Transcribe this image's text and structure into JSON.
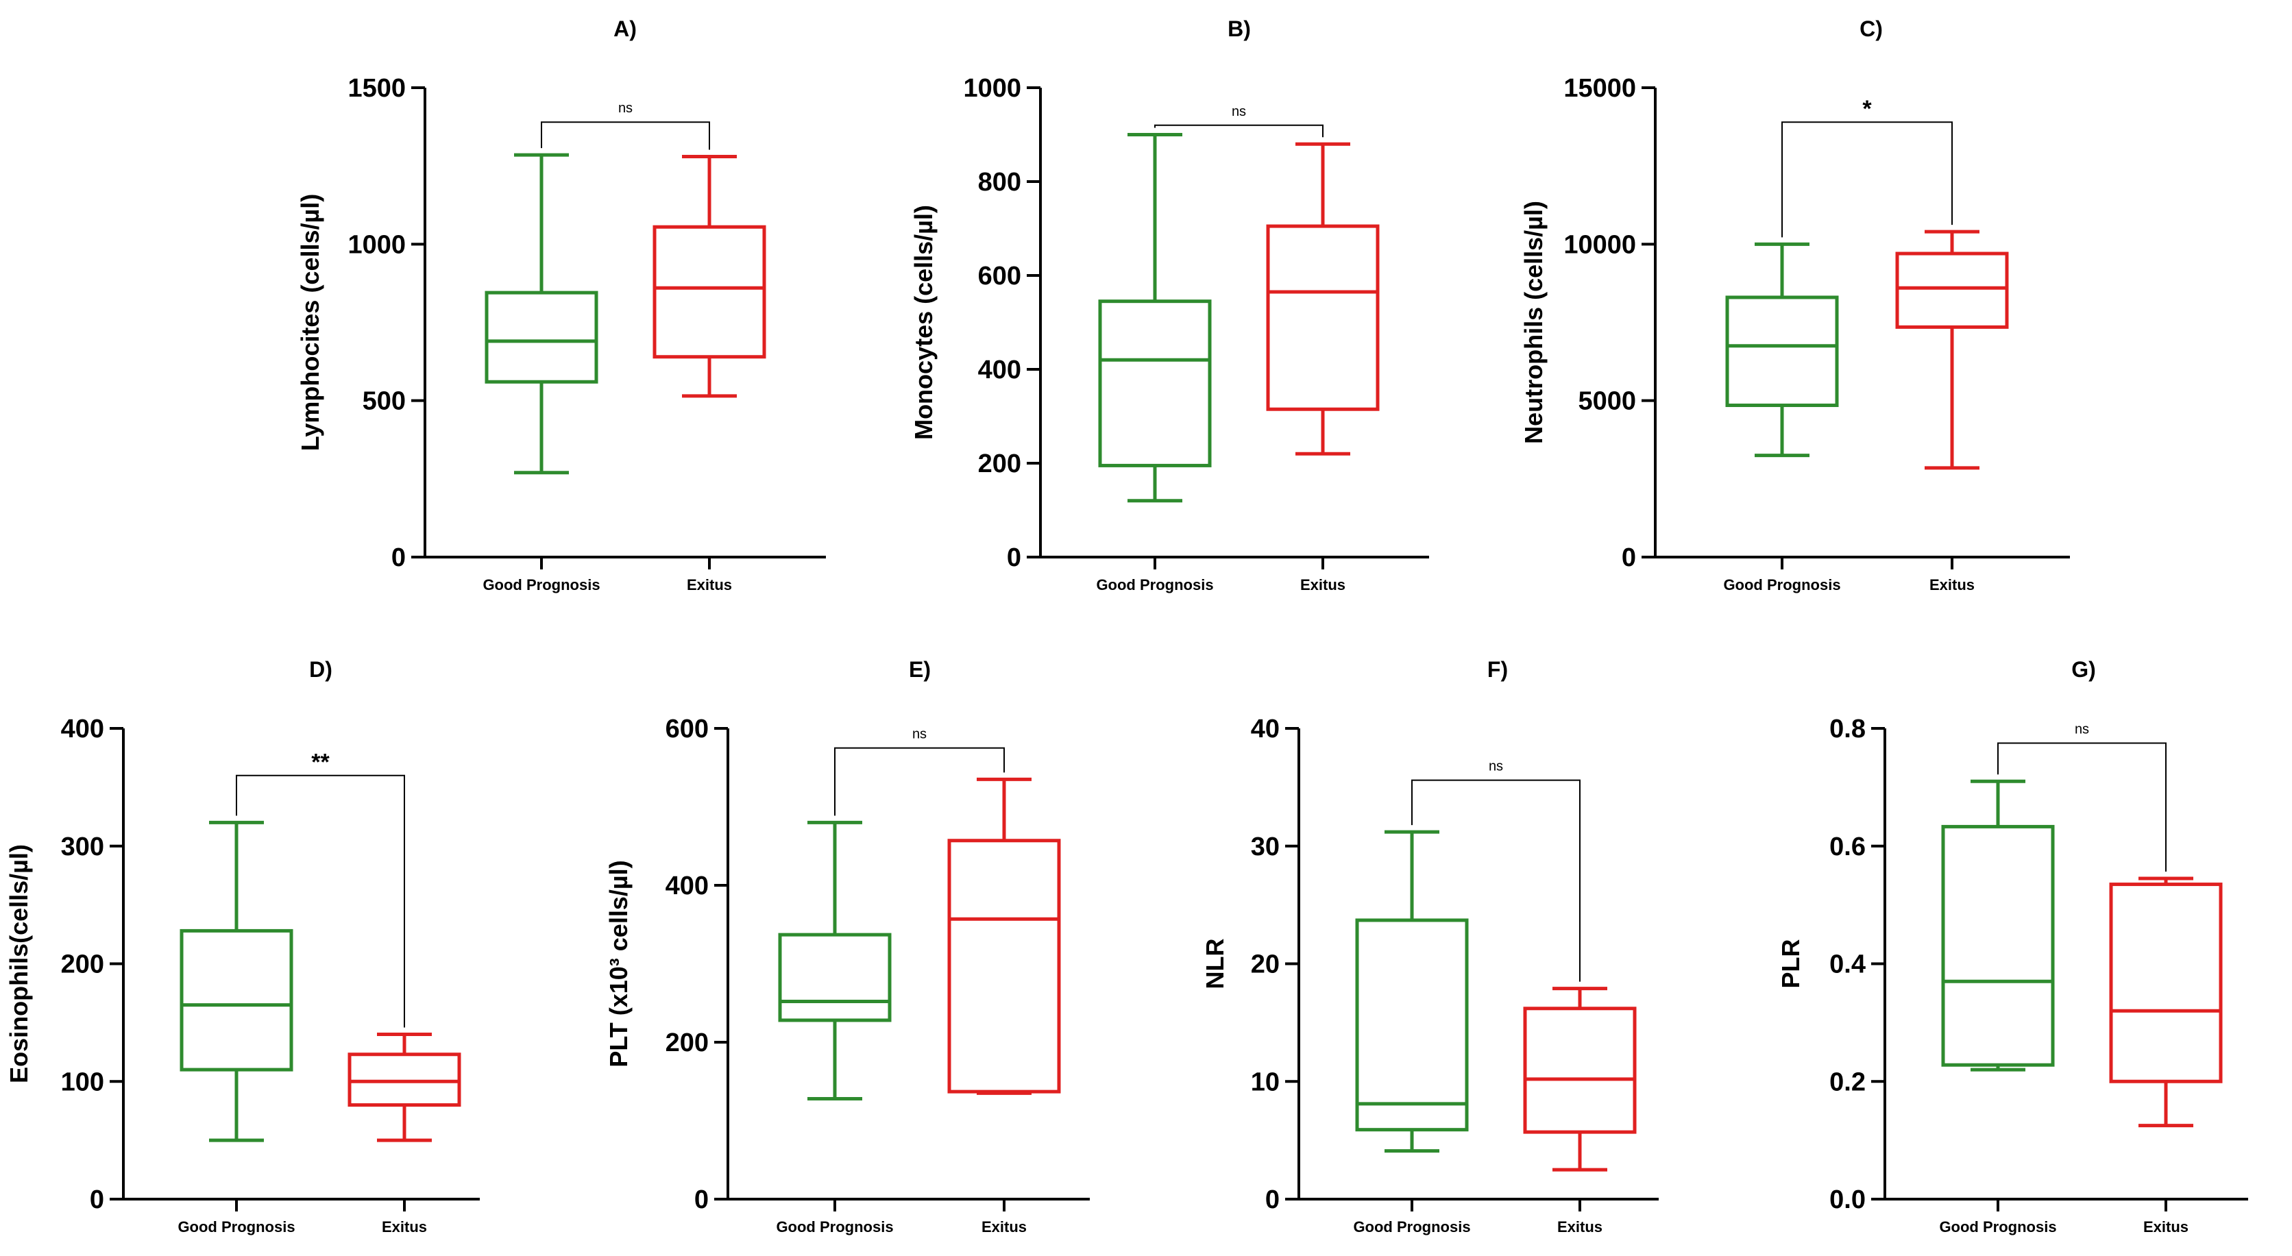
{
  "chart_data": [
    {
      "type": "box",
      "title": "A)",
      "ylabel": "Lymphocites (cells/µl)",
      "ylim": [
        0,
        1500
      ],
      "yticks": [
        0,
        500,
        1000,
        1500
      ],
      "ytick_labels": [
        "0",
        "500",
        "1000",
        "1500"
      ],
      "categories": [
        "Good Prognosis",
        "Exitus"
      ],
      "series": [
        {
          "name": "Good Prognosis",
          "color": "#2e8b2e",
          "min": 270,
          "q1": 560,
          "median": 690,
          "q3": 845,
          "max": 1285
        },
        {
          "name": "Exitus",
          "color": "#e02020",
          "min": 515,
          "q1": 640,
          "median": 860,
          "q3": 1055,
          "max": 1280
        }
      ],
      "significance": {
        "label": "ns",
        "level": 1390
      }
    },
    {
      "type": "box",
      "title": "B)",
      "ylabel": "Monocytes (cells/µl)",
      "ylim": [
        0,
        1000
      ],
      "yticks": [
        0,
        200,
        400,
        600,
        800,
        1000
      ],
      "ytick_labels": [
        "0",
        "200",
        "400",
        "600",
        "800",
        "1000"
      ],
      "categories": [
        "Good Prognosis",
        "Exitus"
      ],
      "series": [
        {
          "name": "Good Prognosis",
          "color": "#2e8b2e",
          "min": 120,
          "q1": 195,
          "median": 420,
          "q3": 545,
          "max": 900
        },
        {
          "name": "Exitus",
          "color": "#e02020",
          "min": 220,
          "q1": 315,
          "median": 565,
          "q3": 705,
          "max": 880
        }
      ],
      "significance": {
        "label": "ns",
        "level": 920
      }
    },
    {
      "type": "box",
      "title": "C)",
      "ylabel": "Neutrophils (cells/µl)",
      "ylim": [
        0,
        15000
      ],
      "yticks": [
        0,
        5000,
        10000,
        15000
      ],
      "ytick_labels": [
        "0",
        "5000",
        "10000",
        "15000"
      ],
      "categories": [
        "Good Prognosis",
        "Exitus"
      ],
      "series": [
        {
          "name": "Good Prognosis",
          "color": "#2e8b2e",
          "min": 3250,
          "q1": 4850,
          "median": 6750,
          "q3": 8300,
          "max": 10000
        },
        {
          "name": "Exitus",
          "color": "#e02020",
          "min": 2850,
          "q1": 7350,
          "median": 8600,
          "q3": 9700,
          "max": 10400
        }
      ],
      "significance": {
        "label": "*",
        "level": 13900
      }
    },
    {
      "type": "box",
      "title": "D)",
      "ylabel": "Eosinophils(cells/µl)",
      "ylim": [
        0,
        400
      ],
      "yticks": [
        0,
        100,
        200,
        300,
        400
      ],
      "ytick_labels": [
        "0",
        "100",
        "200",
        "300",
        "400"
      ],
      "categories": [
        "Good Prognosis",
        "Exitus"
      ],
      "series": [
        {
          "name": "Good Prognosis",
          "color": "#2e8b2e",
          "min": 50,
          "q1": 110,
          "median": 165,
          "q3": 228,
          "max": 320
        },
        {
          "name": "Exitus",
          "color": "#e02020",
          "min": 50,
          "q1": 80,
          "median": 100,
          "q3": 123,
          "max": 140
        }
      ],
      "significance": {
        "label": "**",
        "level": 360
      }
    },
    {
      "type": "box",
      "title": "E)",
      "ylabel": "PLT (x10³ cells/µl)",
      "ylim": [
        0,
        600
      ],
      "yticks": [
        0,
        200,
        400,
        600
      ],
      "ytick_labels": [
        "0",
        "200",
        "400",
        "600"
      ],
      "categories": [
        "Good Prognosis",
        "Exitus"
      ],
      "series": [
        {
          "name": "Good Prognosis",
          "color": "#2e8b2e",
          "min": 128,
          "q1": 228,
          "median": 252,
          "q3": 337,
          "max": 480
        },
        {
          "name": "Exitus",
          "color": "#e02020",
          "min": 135,
          "q1": 137,
          "median": 357,
          "q3": 457,
          "max": 535
        }
      ],
      "significance": {
        "label": "ns",
        "level": 575
      }
    },
    {
      "type": "box",
      "title": "F)",
      "ylabel": "NLR",
      "ylim": [
        0,
        40
      ],
      "yticks": [
        0,
        10,
        20,
        30,
        40
      ],
      "ytick_labels": [
        "0",
        "10",
        "20",
        "30",
        "40"
      ],
      "categories": [
        "Good Prognosis",
        "Exitus"
      ],
      "series": [
        {
          "name": "Good Prognosis",
          "color": "#2e8b2e",
          "min": 4.1,
          "q1": 5.9,
          "median": 8.1,
          "q3": 23.7,
          "max": 31.2
        },
        {
          "name": "Exitus",
          "color": "#e02020",
          "min": 2.5,
          "q1": 5.7,
          "median": 10.2,
          "q3": 16.2,
          "max": 17.9
        }
      ],
      "significance": {
        "label": "ns",
        "level": 35.6
      }
    },
    {
      "type": "box",
      "title": "G)",
      "ylabel": "PLR",
      "ylim": [
        0,
        0.8
      ],
      "yticks": [
        0,
        0.2,
        0.4,
        0.6,
        0.8
      ],
      "ytick_labels": [
        "0.0",
        "0.2",
        "0.4",
        "0.6",
        "0.8"
      ],
      "categories": [
        "Good Prognosis",
        "Exitus"
      ],
      "series": [
        {
          "name": "Good Prognosis",
          "color": "#2e8b2e",
          "min": 0.22,
          "q1": 0.228,
          "median": 0.37,
          "q3": 0.633,
          "max": 0.71
        },
        {
          "name": "Exitus",
          "color": "#e02020",
          "min": 0.125,
          "q1": 0.2,
          "median": 0.32,
          "q3": 0.535,
          "max": 0.545
        }
      ],
      "significance": {
        "label": "ns",
        "level": 0.775
      }
    }
  ]
}
